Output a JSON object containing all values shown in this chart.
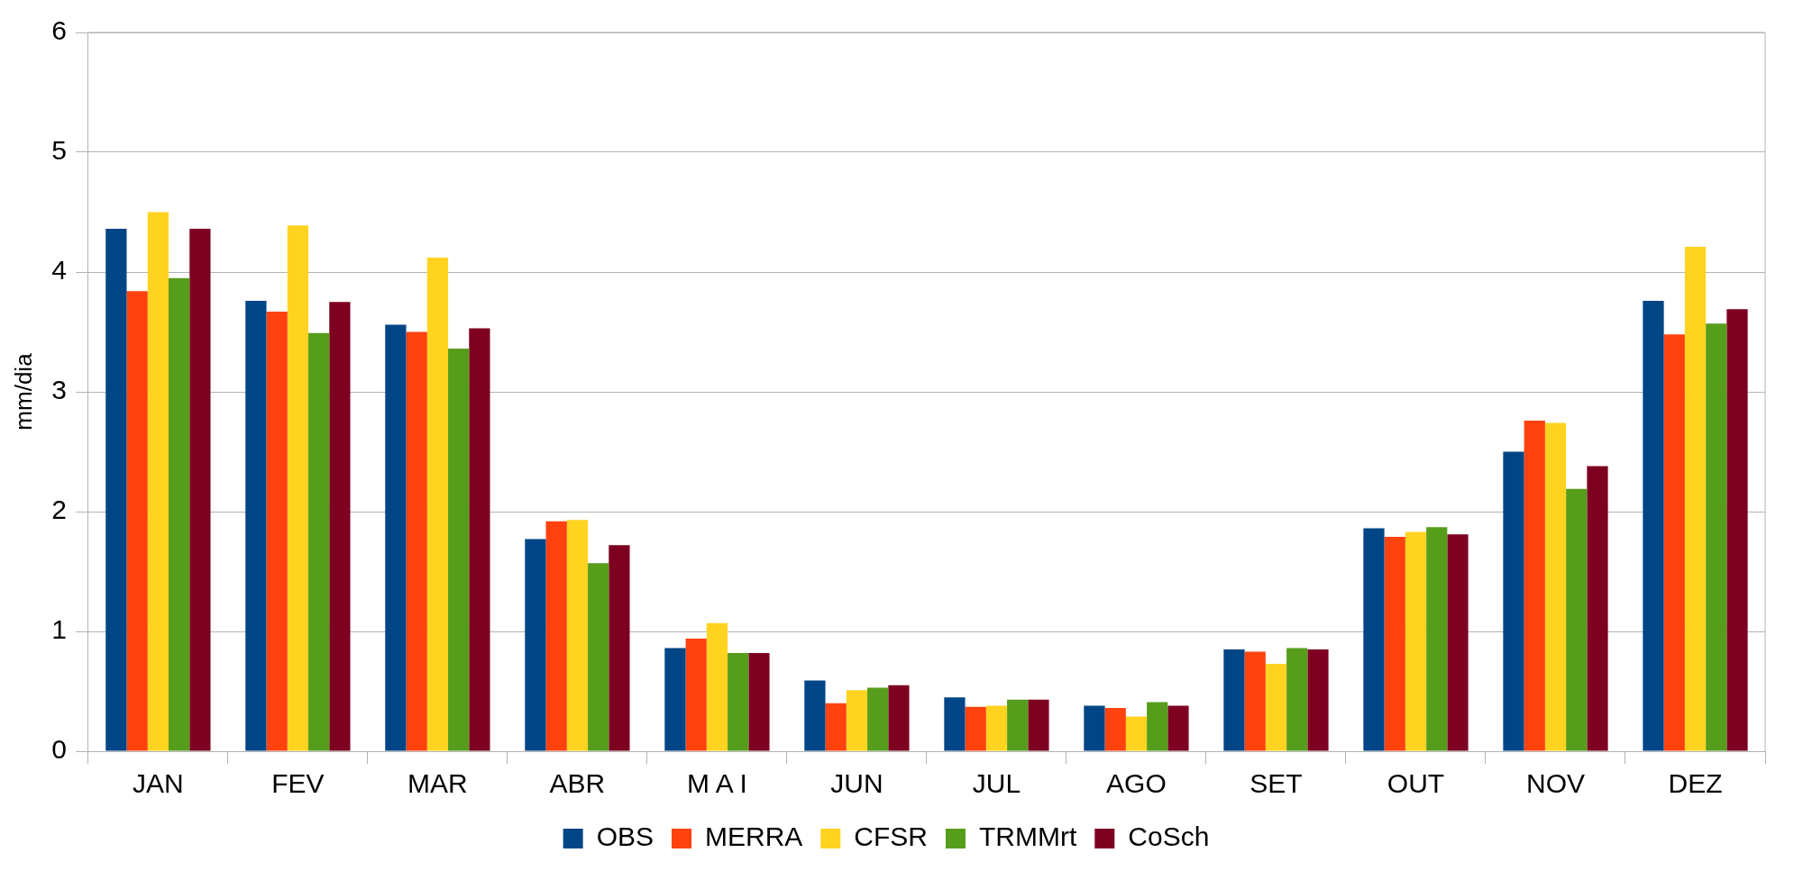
{
  "chart_data": {
    "type": "bar",
    "ylabel": "mm/dia",
    "categories": [
      "JAN",
      "FEV",
      "MAR",
      "ABR",
      "M A I",
      "JUN",
      "JUL",
      "AGO",
      "SET",
      "OUT",
      "NOV",
      "DEZ"
    ],
    "series": [
      {
        "name": "OBS",
        "color": "#004586",
        "values": [
          4.36,
          3.76,
          3.56,
          1.77,
          0.86,
          0.59,
          0.45,
          0.38,
          0.85,
          1.86,
          2.5,
          3.76
        ]
      },
      {
        "name": "MERRA",
        "color": "#ff420e",
        "values": [
          3.84,
          3.67,
          3.5,
          1.92,
          0.94,
          0.4,
          0.37,
          0.36,
          0.83,
          1.79,
          2.76,
          3.48
        ]
      },
      {
        "name": "CFSR",
        "color": "#ffd320",
        "values": [
          4.5,
          4.39,
          4.12,
          1.93,
          1.07,
          0.51,
          0.38,
          0.29,
          0.73,
          1.83,
          2.74,
          4.21
        ]
      },
      {
        "name": "TRMMrt",
        "color": "#579d1c",
        "values": [
          3.95,
          3.49,
          3.36,
          1.57,
          0.82,
          0.53,
          0.43,
          0.41,
          0.86,
          1.87,
          2.19,
          3.57
        ]
      },
      {
        "name": "CoSch",
        "color": "#7e0021",
        "values": [
          4.36,
          3.75,
          3.53,
          1.72,
          0.82,
          0.55,
          0.43,
          0.38,
          0.85,
          1.81,
          2.38,
          3.69
        ]
      }
    ],
    "ylim": [
      0,
      6
    ],
    "yticks": [
      0,
      1,
      2,
      3,
      4,
      5,
      6
    ],
    "grid": "y",
    "legend": "bottom"
  }
}
